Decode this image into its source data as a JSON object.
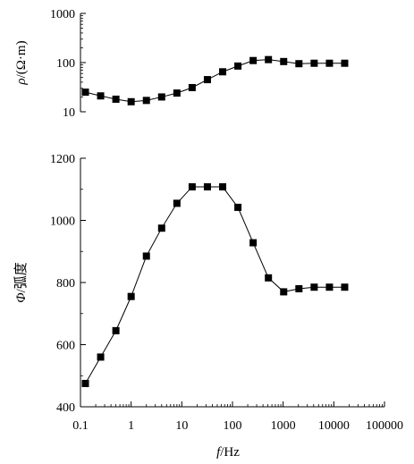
{
  "chart_data": [
    {
      "type": "line",
      "panel": "top",
      "ylabel": "ρ/(Ω·m)",
      "xlabel": "",
      "xscale": "log",
      "yscale": "log",
      "xlim": [
        0.1,
        100000
      ],
      "ylim": [
        10,
        1000
      ],
      "y_ticks": [
        10,
        100,
        1000
      ],
      "y_tick_labels": [
        "10",
        "100",
        "1000"
      ],
      "marker": "square",
      "color": "#000000",
      "x": [
        0.125,
        0.25,
        0.5,
        1,
        2,
        4,
        8,
        16,
        32,
        64,
        128,
        256,
        512,
        1024,
        2048,
        4096,
        8192,
        16384
      ],
      "y": [
        25,
        21,
        18,
        16,
        17,
        20,
        24,
        31,
        45,
        65,
        85,
        110,
        115,
        105,
        95,
        97,
        97,
        97
      ]
    },
    {
      "type": "line",
      "panel": "bottom",
      "ylabel": "Φ/弧度",
      "xlabel": "f/Hz",
      "xscale": "log",
      "yscale": "linear",
      "xlim": [
        0.1,
        100000
      ],
      "ylim": [
        400,
        1200
      ],
      "x_ticks": [
        0.1,
        1,
        10,
        100,
        1000,
        10000,
        100000
      ],
      "x_tick_labels": [
        "0.1",
        "1",
        "10",
        "100",
        "1000",
        "10000",
        "100000"
      ],
      "y_ticks": [
        400,
        600,
        800,
        1000,
        1200
      ],
      "y_tick_labels": [
        "400",
        "600",
        "800",
        "1000",
        "1200"
      ],
      "marker": "square",
      "color": "#000000",
      "x": [
        0.125,
        0.25,
        0.5,
        1,
        2,
        4,
        8,
        16,
        32,
        64,
        128,
        256,
        512,
        1024,
        2048,
        4096,
        8192,
        16384
      ],
      "y": [
        475,
        560,
        645,
        755,
        885,
        975,
        1055,
        1108,
        1108,
        1108,
        1042,
        928,
        815,
        770,
        780,
        785,
        785,
        785
      ]
    }
  ]
}
